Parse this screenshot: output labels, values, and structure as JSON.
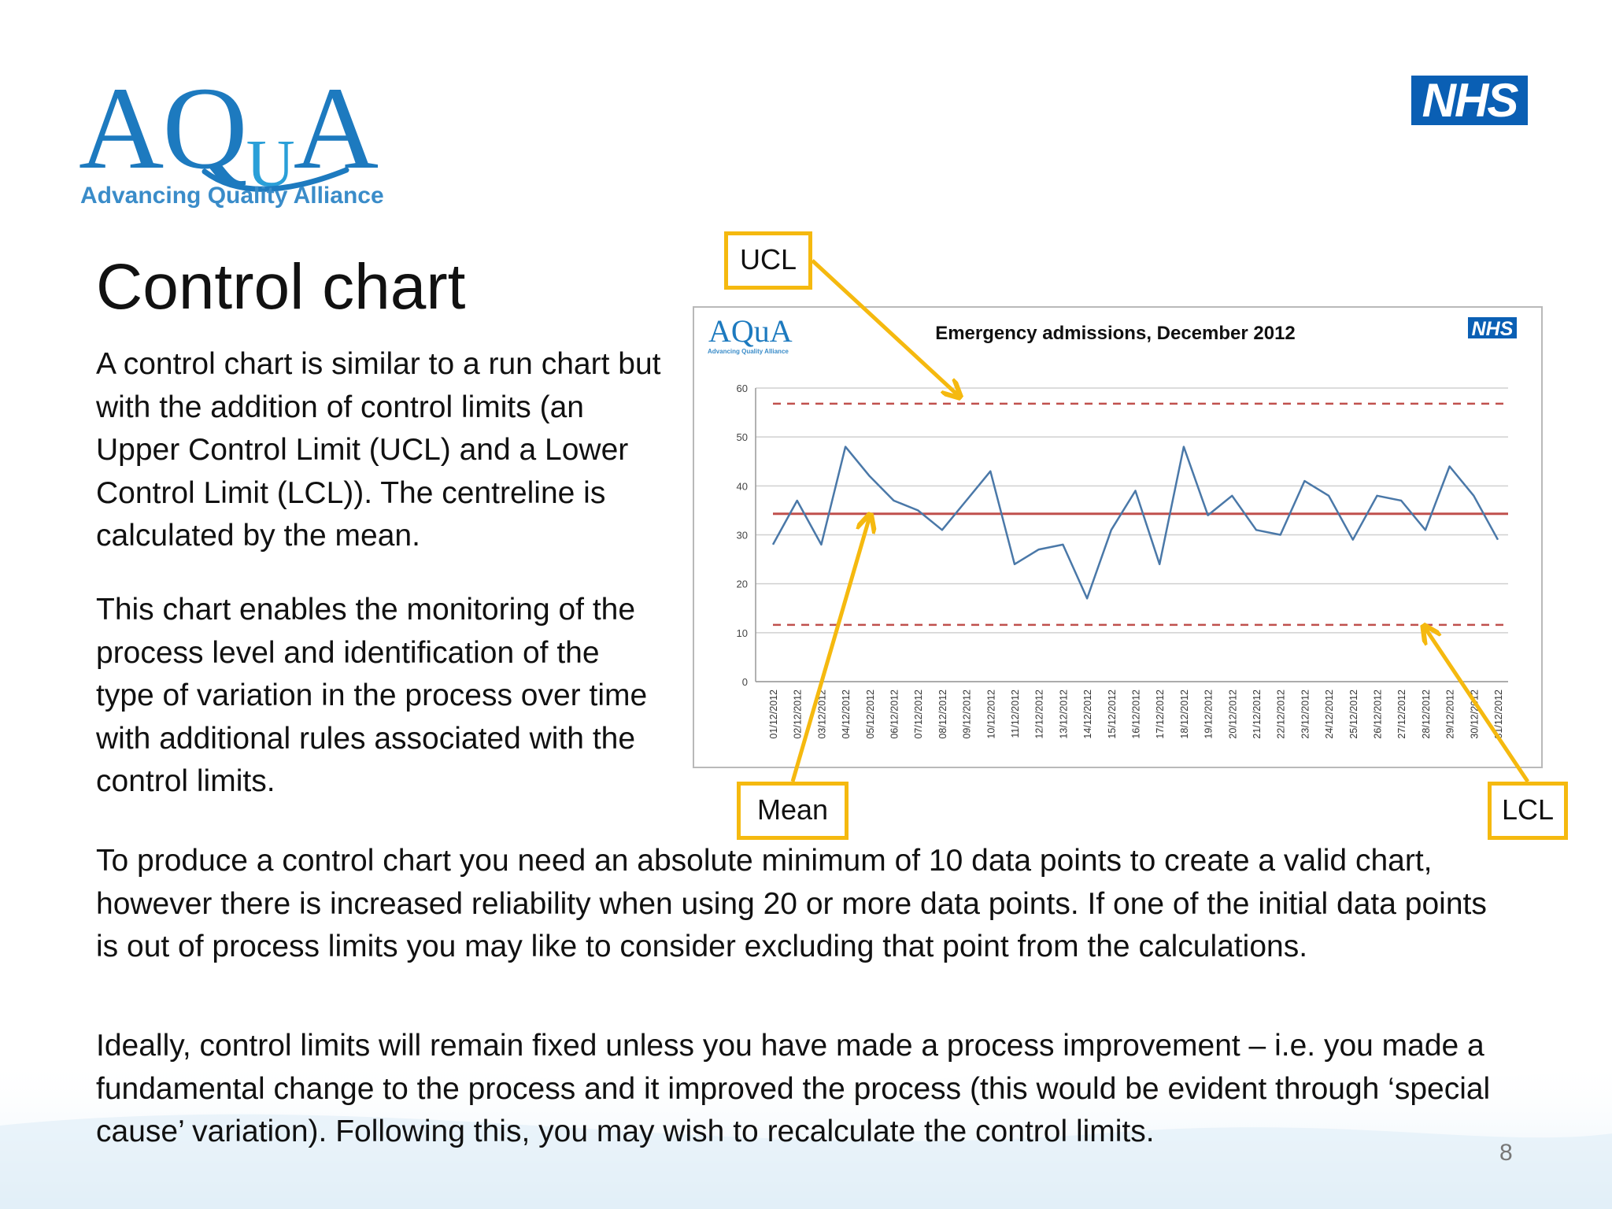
{
  "logo": {
    "text_main": "AQ",
    "text_u": "U",
    "text_end": "A",
    "tagline": "Advancing Quality Alliance"
  },
  "nhs_logo": "NHS",
  "title": "Control chart",
  "paragraphs": [
    "A control chart is similar to a run chart but with the addition of control limits (an Upper Control Limit (UCL) and a Lower Control Limit (LCL)). The centreline is calculated by the mean.",
    "This chart enables the monitoring of the process level and identification of the type of variation in the process over time with additional rules associated with the control limits.",
    "To produce a control chart you need an absolute minimum of 10 data points to create a valid chart, however there is increased reliability when using 20 or more data points. If one of the initial data points is out of process limits you may like to consider excluding that point from the calculations.",
    "Ideally, control limits will remain fixed unless you have made a process improvement – i.e. you made a fundamental change to the process and it improved the process (this would be evident through ‘special cause’ variation). Following this, you may wish to recalculate the control limits."
  ],
  "callouts": {
    "ucl": "UCL",
    "mean": "Mean",
    "lcl": "LCL"
  },
  "page_number": "8",
  "colors": {
    "accent": "#f5b90f",
    "line": "#4a78a8",
    "mean": "#c0504d",
    "limits": "#c0504d",
    "nhs": "#0a5fb4"
  },
  "chart_data": {
    "type": "line",
    "title": "Emergency admissions, December 2012",
    "logo_text": "AQuA",
    "logo_tagline": "Advancing Quality Alliance",
    "nhs_badge": "NHS",
    "categories": [
      "01/12/2012",
      "02/12/2012",
      "03/12/2012",
      "04/12/2012",
      "05/12/2012",
      "06/12/2012",
      "07/12/2012",
      "08/12/2012",
      "09/12/2012",
      "10/12/2012",
      "11/12/2012",
      "12/12/2012",
      "13/12/2012",
      "14/12/2012",
      "15/12/2012",
      "16/12/2012",
      "17/12/2012",
      "18/12/2012",
      "19/12/2012",
      "20/12/2012",
      "21/12/2012",
      "22/12/2012",
      "23/12/2012",
      "24/12/2012",
      "25/12/2012",
      "26/12/2012",
      "27/12/2012",
      "28/12/2012",
      "29/12/2012",
      "30/12/2012",
      "31/12/2012"
    ],
    "values": [
      28,
      37,
      28,
      48,
      42,
      37,
      35,
      31,
      37,
      43,
      24,
      27,
      28,
      17,
      31,
      39,
      24,
      48,
      34,
      38,
      31,
      30,
      41,
      38,
      29,
      38,
      37,
      31,
      44,
      38,
      29
    ],
    "mean": 34.3,
    "ucl": 56.8,
    "lcl": 11.6,
    "ylim": [
      0,
      60
    ],
    "yticks": [
      0,
      10,
      20,
      30,
      40,
      50,
      60
    ],
    "grid": true
  }
}
